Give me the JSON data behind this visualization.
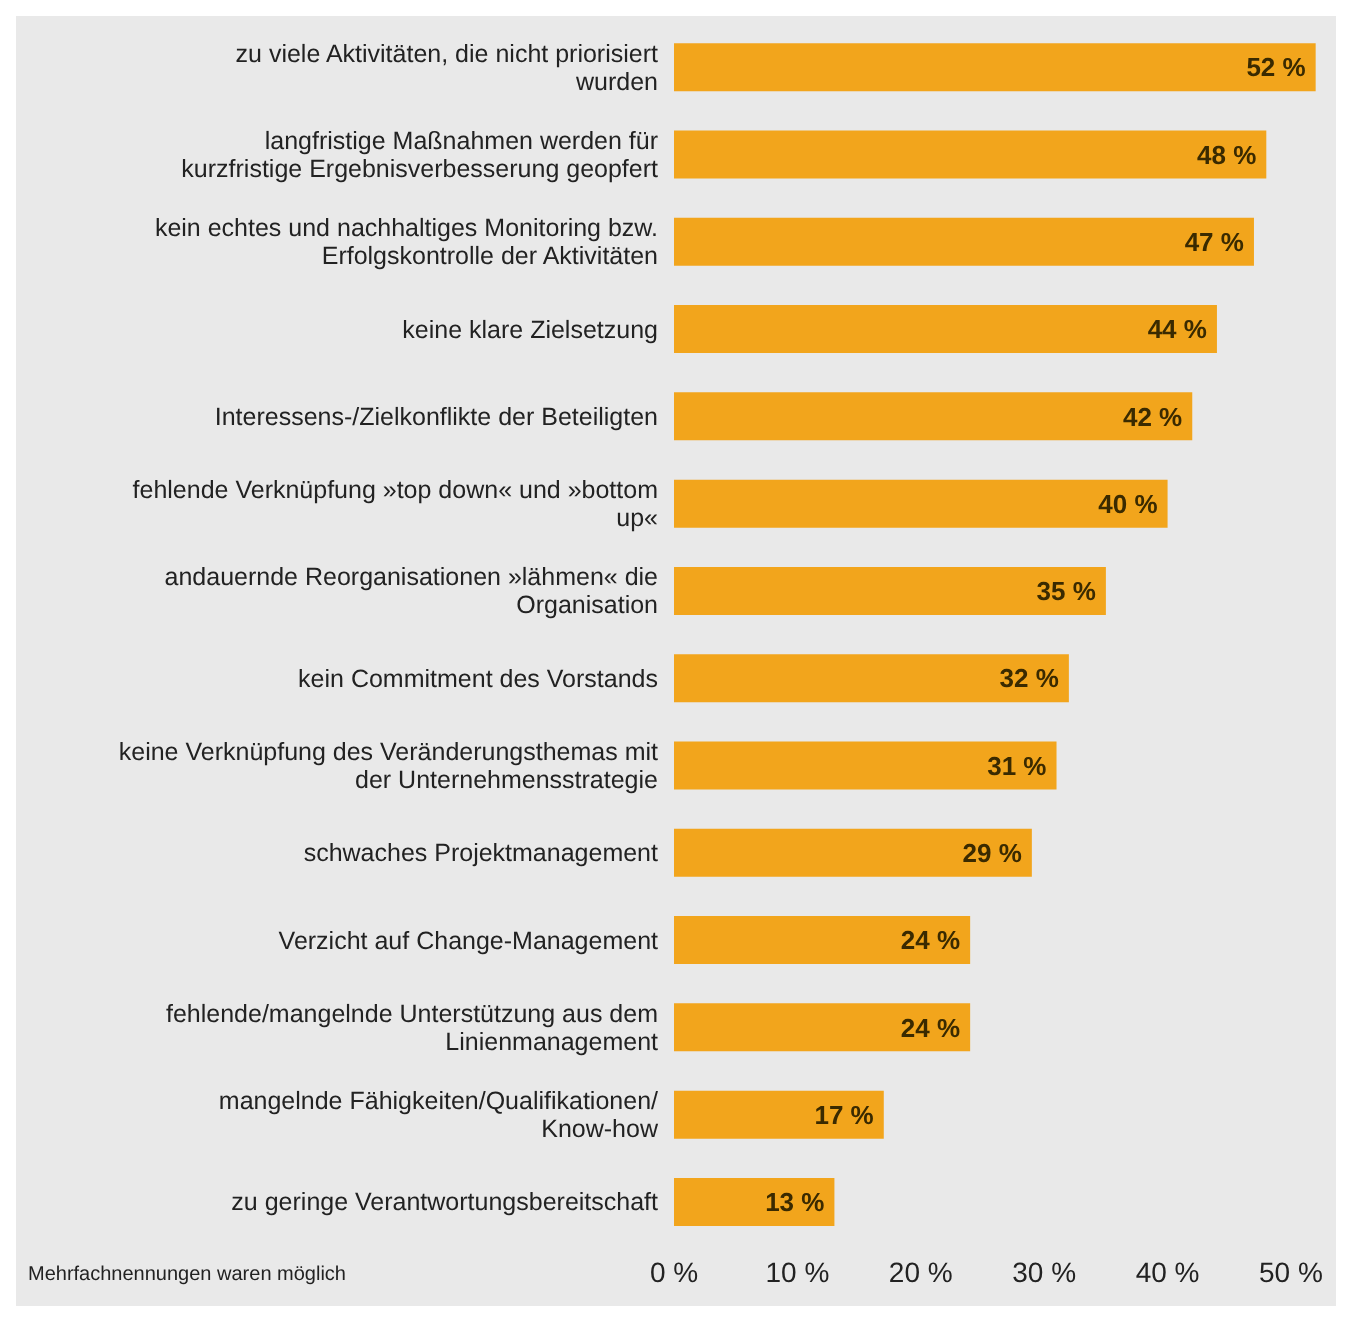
{
  "chart_data": {
    "type": "bar",
    "orientation": "horizontal",
    "categories": [
      "zu viele Aktivitäten, die nicht priorisiert wurden",
      "langfristige Maßnahmen werden für kurzfristige Ergebnisverbesserung geopfert",
      "kein echtes und nachhaltiges Monitoring bzw. Erfolgskontrolle der Aktivitäten",
      "keine klare Zielsetzung",
      "Interessens-/Zielkonflikte der Beteiligten",
      "fehlende Verknüpfung »top down« und »bottom up«",
      "andauernde Reorganisationen »lähmen« die Organisation",
      "kein Commitment des Vorstands",
      "keine Verknüpfung des Veränderungsthemas mit der Unternehmensstrategie",
      "schwaches Projektmanagement",
      "Verzicht auf Change-Management",
      "fehlende/mangelnde Unterstützung aus dem Linienmanagement",
      "mangelnde Fähigkeiten/Qualifikationen/ Know-how",
      "zu geringe Verantwortungsbereitschaft"
    ],
    "values": [
      52,
      48,
      47,
      44,
      42,
      40,
      35,
      32,
      31,
      29,
      24,
      24,
      17,
      13
    ],
    "value_labels": [
      "52 %",
      "48 %",
      "47 %",
      "44 %",
      "42 %",
      "40 %",
      "35 %",
      "32 %",
      "31 %",
      "29 %",
      "24 %",
      "24 %",
      "17 %",
      "13 %"
    ],
    "color": "#f2a51c",
    "xlim": [
      0,
      53
    ],
    "xticks": [
      {
        "value": 0,
        "label": "0 %"
      },
      {
        "value": 10,
        "label": "10 %"
      },
      {
        "value": 20,
        "label": "20 %"
      },
      {
        "value": 30,
        "label": "30 %"
      },
      {
        "value": 40,
        "label": "40 %"
      },
      {
        "value": 50,
        "label": "50 %"
      }
    ],
    "grid": false,
    "annotations": [
      "Mehrfachnennungen waren möglich"
    ]
  }
}
